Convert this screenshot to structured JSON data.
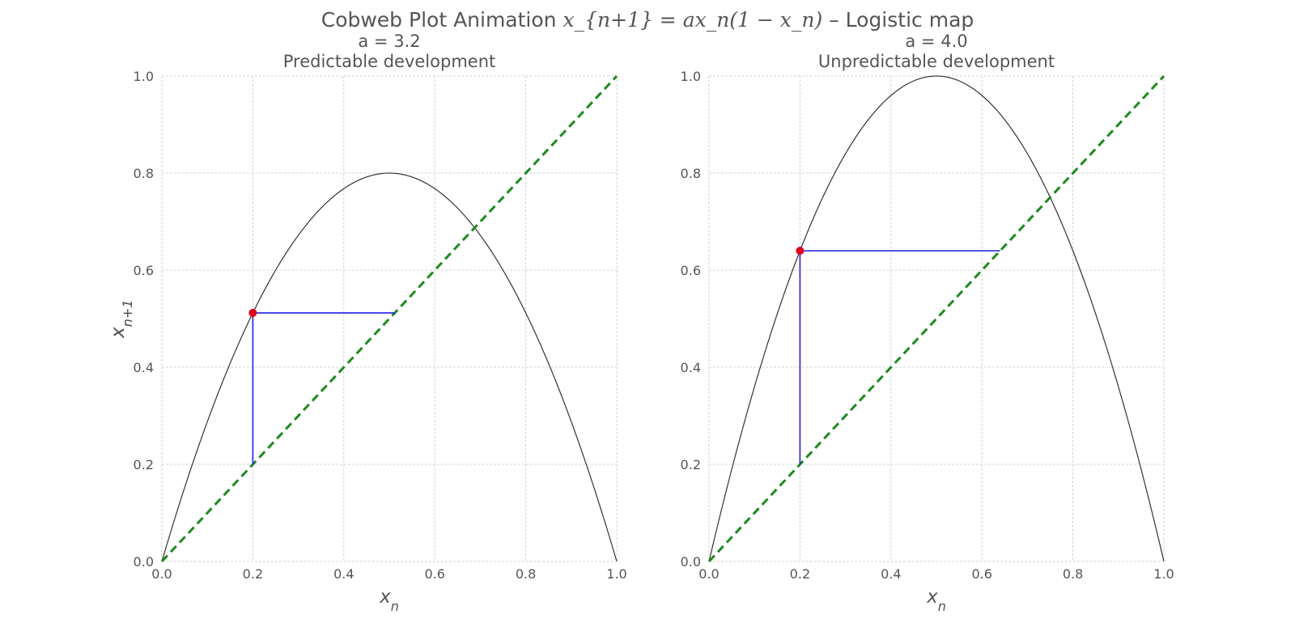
{
  "figure": {
    "title_text": "Cobweb Plot Animation",
    "title_formula": "x_{n+1} = ax_n(1 − x_n)",
    "title_suffix": "– Logistic map"
  },
  "colors": {
    "curve": "#333333",
    "diagonal": "#1e8a1e",
    "cobweb": "#1f1fe8",
    "point": "#e0001b",
    "grid": "#c8c8c8",
    "text": "#555555"
  },
  "chart_data": [
    {
      "type": "line",
      "param_label": "a = 3.2",
      "title": "Predictable development",
      "xlabel": "x_n",
      "ylabel": "x_{n+1}",
      "a": 3.2,
      "x0": 0.2,
      "xlim": [
        0.0,
        1.0
      ],
      "ylim": [
        0.0,
        1.0
      ],
      "xticks": [
        "0.0",
        "0.2",
        "0.4",
        "0.6",
        "0.8",
        "1.0"
      ],
      "yticks": [
        "0.0",
        "0.2",
        "0.4",
        "0.6",
        "0.8",
        "1.0"
      ],
      "grid": true,
      "series": [
        {
          "kind": "curve",
          "function": "a*x*(1-x)"
        },
        {
          "kind": "diagonal",
          "x": [
            0,
            1
          ],
          "y": [
            0,
            1
          ]
        },
        {
          "kind": "cobweb",
          "x": [
            0.2,
            0.2,
            0.512
          ],
          "y": [
            0.2,
            0.512,
            0.512
          ]
        },
        {
          "kind": "point",
          "x": 0.2,
          "y": 0.512
        }
      ]
    },
    {
      "type": "line",
      "param_label": "a = 4.0",
      "title": "Unpredictable development",
      "xlabel": "x_n",
      "ylabel": "x_{n+1}",
      "a": 4.0,
      "x0": 0.2,
      "xlim": [
        0.0,
        1.0
      ],
      "ylim": [
        0.0,
        1.0
      ],
      "xticks": [
        "0.0",
        "0.2",
        "0.4",
        "0.6",
        "0.8",
        "1.0"
      ],
      "yticks": [
        "0.0",
        "0.2",
        "0.4",
        "0.6",
        "0.8",
        "1.0"
      ],
      "grid": true,
      "series": [
        {
          "kind": "curve",
          "function": "a*x*(1-x)"
        },
        {
          "kind": "diagonal",
          "x": [
            0,
            1
          ],
          "y": [
            0,
            1
          ]
        },
        {
          "kind": "cobweb",
          "x": [
            0.2,
            0.2,
            0.64
          ],
          "y": [
            0.2,
            0.64,
            0.64
          ]
        },
        {
          "kind": "point",
          "x": 0.2,
          "y": 0.64
        }
      ]
    }
  ]
}
